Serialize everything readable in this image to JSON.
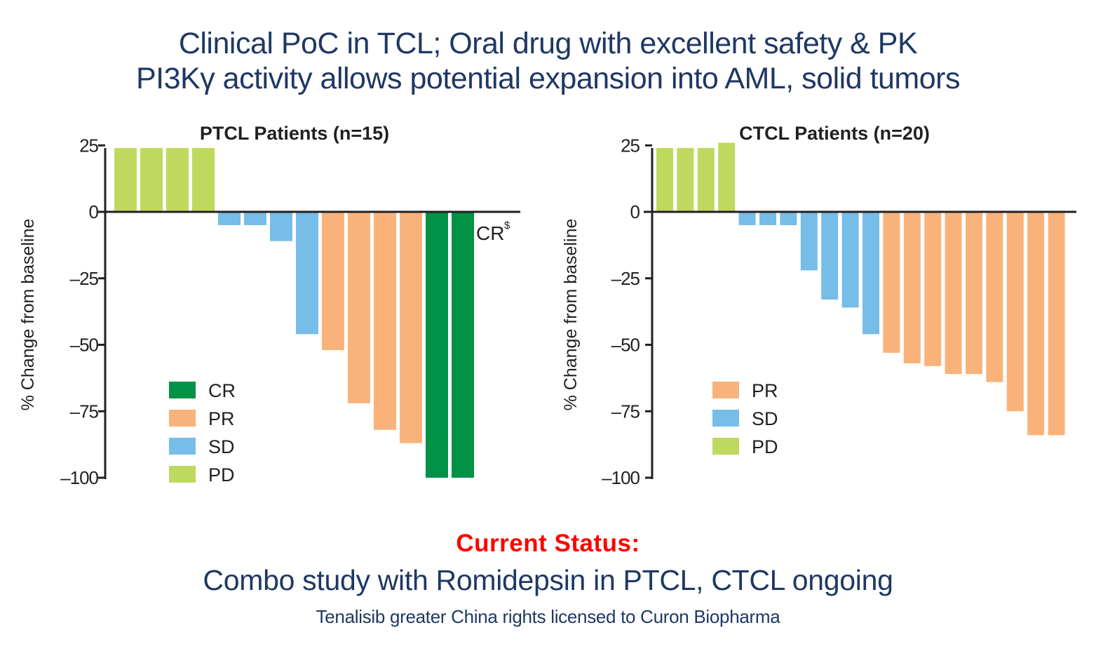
{
  "header": {
    "line1": "Clinical PoC in TCL; Oral drug with excellent safety & PK",
    "line2": "PI3Kγ activity allows potential expansion into AML, solid tumors"
  },
  "colors": {
    "title_navy": "#1f3864",
    "status_red": "#ff0000",
    "CR": "#009245",
    "PR": "#f9b37a",
    "SD": "#76bde8",
    "PD": "#bfd95f",
    "axis": "#231f20"
  },
  "chart_data": [
    {
      "type": "bar",
      "title": "PTCL Patients (n=15)",
      "xlabel": "",
      "ylabel": "% Change from baseline",
      "ylim": [
        -100,
        25
      ],
      "yticks": [
        25,
        0,
        -25,
        -50,
        -75,
        -100
      ],
      "ytick_labels": [
        "25",
        "0",
        "–25",
        "–50",
        "–75",
        "–100"
      ],
      "grid": false,
      "legend": {
        "placement": "bottom-left",
        "entries": [
          "CR",
          "PR",
          "SD",
          "PD"
        ]
      },
      "annotation": {
        "text": "CR",
        "superscript": "$",
        "near": "last bars"
      },
      "values": [
        24,
        24,
        24,
        24,
        -5,
        -5,
        -11,
        -46,
        -52,
        -72,
        -82,
        -87,
        -100,
        -100
      ],
      "response": [
        "PD",
        "PD",
        "PD",
        "PD",
        "SD",
        "SD",
        "SD",
        "SD",
        "PR",
        "PR",
        "PR",
        "PR",
        "CR",
        "CR"
      ]
    },
    {
      "type": "bar",
      "title": "CTCL Patients (n=20)",
      "xlabel": "",
      "ylabel": "% Change from baseline",
      "ylim": [
        -100,
        25
      ],
      "yticks": [
        25,
        0,
        -25,
        -50,
        -75,
        -100
      ],
      "ytick_labels": [
        "25",
        "0",
        "–25",
        "–50",
        "–75",
        "–100"
      ],
      "grid": false,
      "legend": {
        "placement": "bottom-left",
        "entries": [
          "PR",
          "SD",
          "PD"
        ]
      },
      "values": [
        24,
        24,
        24,
        26,
        -5,
        -5,
        -5,
        -22,
        -33,
        -36,
        -46,
        -53,
        -57,
        -58,
        -61,
        -61,
        -64,
        -75,
        -84,
        -84
      ],
      "response": [
        "PD",
        "PD",
        "PD",
        "PD",
        "SD",
        "SD",
        "SD",
        "SD",
        "SD",
        "SD",
        "SD",
        "PR",
        "PR",
        "PR",
        "PR",
        "PR",
        "PR",
        "PR",
        "PR",
        "PR"
      ]
    }
  ],
  "status": {
    "title": "Current Status:",
    "line": "Combo study with Romidepsin in PTCL, CTCL ongoing",
    "license": "Tenalisib greater China rights licensed to Curon Biopharma"
  }
}
